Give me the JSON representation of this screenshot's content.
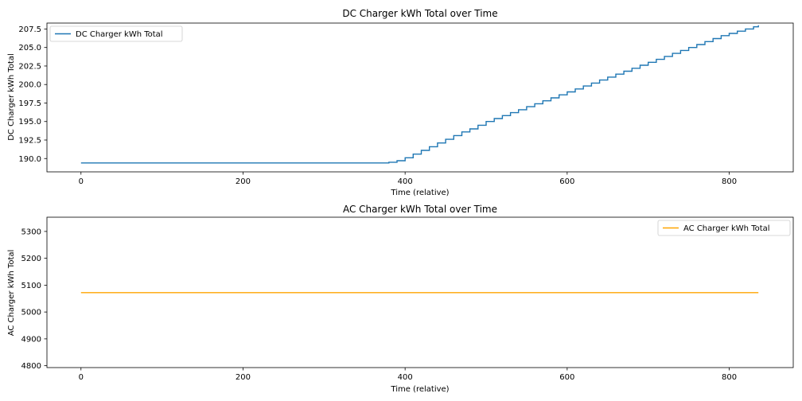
{
  "chart_data": [
    {
      "type": "line",
      "title": "DC Charger kWh Total over Time",
      "xlabel": "Time (relative)",
      "ylabel": "DC Charger kWh Total",
      "xlim": [
        -42,
        879
      ],
      "ylim": [
        188.2,
        208.3
      ],
      "xticks": [
        0,
        200,
        400,
        600,
        800
      ],
      "xtick_labels": [
        "0",
        "200",
        "400",
        "600",
        "800"
      ],
      "yticks": [
        190.0,
        192.5,
        195.0,
        197.5,
        200.0,
        202.5,
        205.0,
        207.5
      ],
      "ytick_labels": [
        "190.0",
        "192.5",
        "195.0",
        "197.5",
        "200.0",
        "202.5",
        "205.0",
        "207.5"
      ],
      "grid": false,
      "legend": {
        "position": "upper-left"
      },
      "series": [
        {
          "name": "DC Charger kWh Total",
          "color": "#1f77b4",
          "x": [
            0,
            370,
            380,
            390,
            400,
            410,
            420,
            430,
            440,
            450,
            460,
            470,
            480,
            490,
            500,
            510,
            520,
            530,
            540,
            550,
            560,
            570,
            580,
            590,
            600,
            610,
            620,
            630,
            640,
            650,
            660,
            670,
            680,
            690,
            700,
            710,
            720,
            730,
            740,
            750,
            760,
            770,
            780,
            790,
            800,
            810,
            820,
            830,
            836
          ],
          "y": [
            189.4,
            189.4,
            189.5,
            189.7,
            190.1,
            190.6,
            191.1,
            191.6,
            192.1,
            192.6,
            193.1,
            193.6,
            194.0,
            194.5,
            195.0,
            195.4,
            195.8,
            196.2,
            196.6,
            197.0,
            197.4,
            197.8,
            198.2,
            198.6,
            199.0,
            199.4,
            199.8,
            200.2,
            200.6,
            201.0,
            201.4,
            201.8,
            202.2,
            202.6,
            203.0,
            203.4,
            203.8,
            204.2,
            204.6,
            205.0,
            205.4,
            205.8,
            206.2,
            206.6,
            206.9,
            207.2,
            207.5,
            207.8,
            208.0
          ]
        }
      ]
    },
    {
      "type": "line",
      "title": "AC Charger kWh Total over Time",
      "xlabel": "Time (relative)",
      "ylabel": "AC Charger kWh Total",
      "xlim": [
        -42,
        879
      ],
      "ylim": [
        4793,
        5353
      ],
      "xticks": [
        0,
        200,
        400,
        600,
        800
      ],
      "xtick_labels": [
        "0",
        "200",
        "400",
        "600",
        "800"
      ],
      "yticks": [
        4800,
        4900,
        5000,
        5100,
        5200,
        5300
      ],
      "ytick_labels": [
        "4800",
        "4900",
        "5000",
        "5100",
        "5200",
        "5300"
      ],
      "grid": false,
      "legend": {
        "position": "upper-right"
      },
      "series": [
        {
          "name": "AC Charger kWh Total",
          "color": "#ffa500",
          "x": [
            0,
            836
          ],
          "y": [
            5072,
            5072
          ]
        }
      ]
    }
  ]
}
